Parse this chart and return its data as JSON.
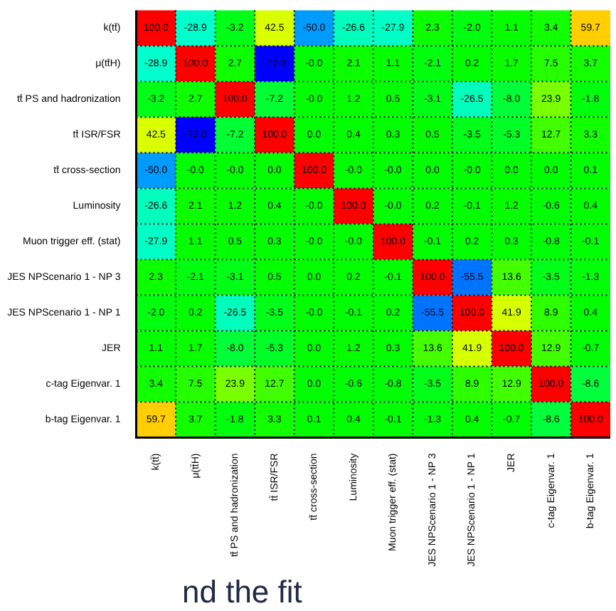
{
  "chart_data": {
    "type": "heatmap",
    "categories": [
      "k(tt̄)",
      "μ(tt̄H)",
      "tt̄ PS and hadronization",
      "tt̄ ISR/FSR",
      "tt̄ cross-section",
      "Luminosity",
      "Muon trigger eff. (stat)",
      "JES NPScenario 1 - NP 3",
      "JES NPScenario 1 - NP 1",
      "JER",
      "c-tag Eigenvar. 1",
      "b-tag Eigenvar. 1"
    ],
    "y_categories": [
      "k(tt̄)",
      "μ(tt̄H)",
      "tt̄ PS and hadronization",
      "tt̄ ISR/FSR",
      "tt̄ cross-section",
      "Luminosity",
      "Muon trigger eff. (stat)",
      "JES NPScenario 1 - NP 3",
      "JES NPScenario 1 - NP 1",
      "JER",
      "c-tag Eigenvar. 1",
      "b-tag Eigenvar. 1"
    ],
    "cells": [
      [
        100.0,
        -28.9,
        -3.2,
        42.5,
        -50.0,
        -26.6,
        -27.9,
        2.3,
        -2.0,
        1.1,
        3.4,
        59.7
      ],
      [
        -28.9,
        100.0,
        2.7,
        -72.0,
        0.0,
        2.1,
        1.1,
        -2.1,
        0.2,
        1.7,
        7.5,
        3.7
      ],
      [
        -3.2,
        2.7,
        100.0,
        -7.2,
        0.0,
        1.2,
        0.5,
        -3.1,
        -26.5,
        -8.0,
        23.9,
        -1.8
      ],
      [
        42.5,
        -72.0,
        -7.2,
        100.0,
        0.0,
        0.4,
        0.3,
        0.5,
        -3.5,
        -5.3,
        12.7,
        3.3
      ],
      [
        -50.0,
        0.0,
        0.0,
        0.0,
        100.0,
        0.0,
        0.0,
        0.0,
        0.0,
        0.0,
        0.0,
        0.1
      ],
      [
        -26.6,
        2.1,
        1.2,
        0.4,
        0.0,
        100.0,
        0.0,
        0.2,
        -0.1,
        1.2,
        -0.6,
        0.4
      ],
      [
        -27.9,
        1.1,
        0.5,
        0.3,
        0.0,
        0.0,
        100.0,
        -0.1,
        0.2,
        0.3,
        -0.8,
        -0.1
      ],
      [
        2.3,
        -2.1,
        -3.1,
        0.5,
        0.0,
        0.2,
        -0.1,
        100.0,
        -55.5,
        13.6,
        -3.5,
        -1.3
      ],
      [
        -2.0,
        0.2,
        -26.5,
        -3.5,
        0.0,
        -0.1,
        0.2,
        -55.5,
        100.0,
        41.9,
        8.9,
        0.4
      ],
      [
        1.1,
        1.7,
        -8.0,
        -5.3,
        0.0,
        1.2,
        0.3,
        13.6,
        41.9,
        100.0,
        12.9,
        -0.7
      ],
      [
        3.4,
        7.5,
        23.9,
        12.7,
        0.0,
        -0.6,
        -0.8,
        -3.5,
        8.9,
        12.9,
        100.0,
        -8.6
      ],
      [
        59.7,
        3.7,
        -1.8,
        3.3,
        0.1,
        0.4,
        -0.1,
        -1.3,
        0.4,
        -0.7,
        -8.6,
        100.0
      ]
    ],
    "cell_labels": [
      [
        "100.0",
        "-28.9",
        "-3.2",
        "42.5",
        "-50.0",
        "-26.6",
        "-27.9",
        "2.3",
        "-2.0",
        "1.1",
        "3.4",
        "59.7"
      ],
      [
        "-28.9",
        "100.0",
        "2.7",
        "-72.0",
        "-0.0",
        "2.1",
        "1.1",
        "-2.1",
        "0.2",
        "1.7",
        "7.5",
        "3.7"
      ],
      [
        "-3.2",
        "2.7",
        "100.0",
        "-7.2",
        "-0.0",
        "1.2",
        "0.5",
        "-3.1",
        "-26.5",
        "-8.0",
        "23.9",
        "-1.8"
      ],
      [
        "42.5",
        "-72.0",
        "-7.2",
        "100.0",
        "0.0",
        "0.4",
        "0.3",
        "0.5",
        "-3.5",
        "-5.3",
        "12.7",
        "3.3"
      ],
      [
        "-50.0",
        "-0.0",
        "-0.0",
        "0.0",
        "100.0",
        "-0.0",
        "-0.0",
        "0.0",
        "-0.0",
        "0.0",
        "0.0",
        "0.1"
      ],
      [
        "-26.6",
        "2.1",
        "1.2",
        "0.4",
        "-0.0",
        "100.0",
        "-0.0",
        "0.2",
        "-0.1",
        "1.2",
        "-0.6",
        "0.4"
      ],
      [
        "-27.9",
        "1.1",
        "0.5",
        "0.3",
        "-0.0",
        "-0.0",
        "100.0",
        "-0.1",
        "0.2",
        "0.3",
        "-0.8",
        "-0.1"
      ],
      [
        "2.3",
        "-2.1",
        "-3.1",
        "0.5",
        "0.0",
        "0.2",
        "-0.1",
        "100.0",
        "-55.5",
        "13.6",
        "-3.5",
        "-1.3"
      ],
      [
        "-2.0",
        "0.2",
        "-26.5",
        "-3.5",
        "-0.0",
        "-0.1",
        "0.2",
        "-55.5",
        "100.0",
        "41.9",
        "8.9",
        "0.4"
      ],
      [
        "1.1",
        "1.7",
        "-8.0",
        "-5.3",
        "0.0",
        "1.2",
        "0.3",
        "13.6",
        "41.9",
        "100.0",
        "12.9",
        "-0.7"
      ],
      [
        "3.4",
        "7.5",
        "23.9",
        "12.7",
        "0.0",
        "-0.6",
        "-0.8",
        "-3.5",
        "8.9",
        "12.9",
        "100.0",
        "-8.6"
      ],
      [
        "59.7",
        "3.7",
        "-1.8",
        "3.3",
        "0.1",
        "0.4",
        "-0.1",
        "-1.3",
        "0.4",
        "-0.7",
        "-8.6",
        "100.0"
      ]
    ],
    "grid": true,
    "annotations": [
      "nd the fit"
    ]
  }
}
